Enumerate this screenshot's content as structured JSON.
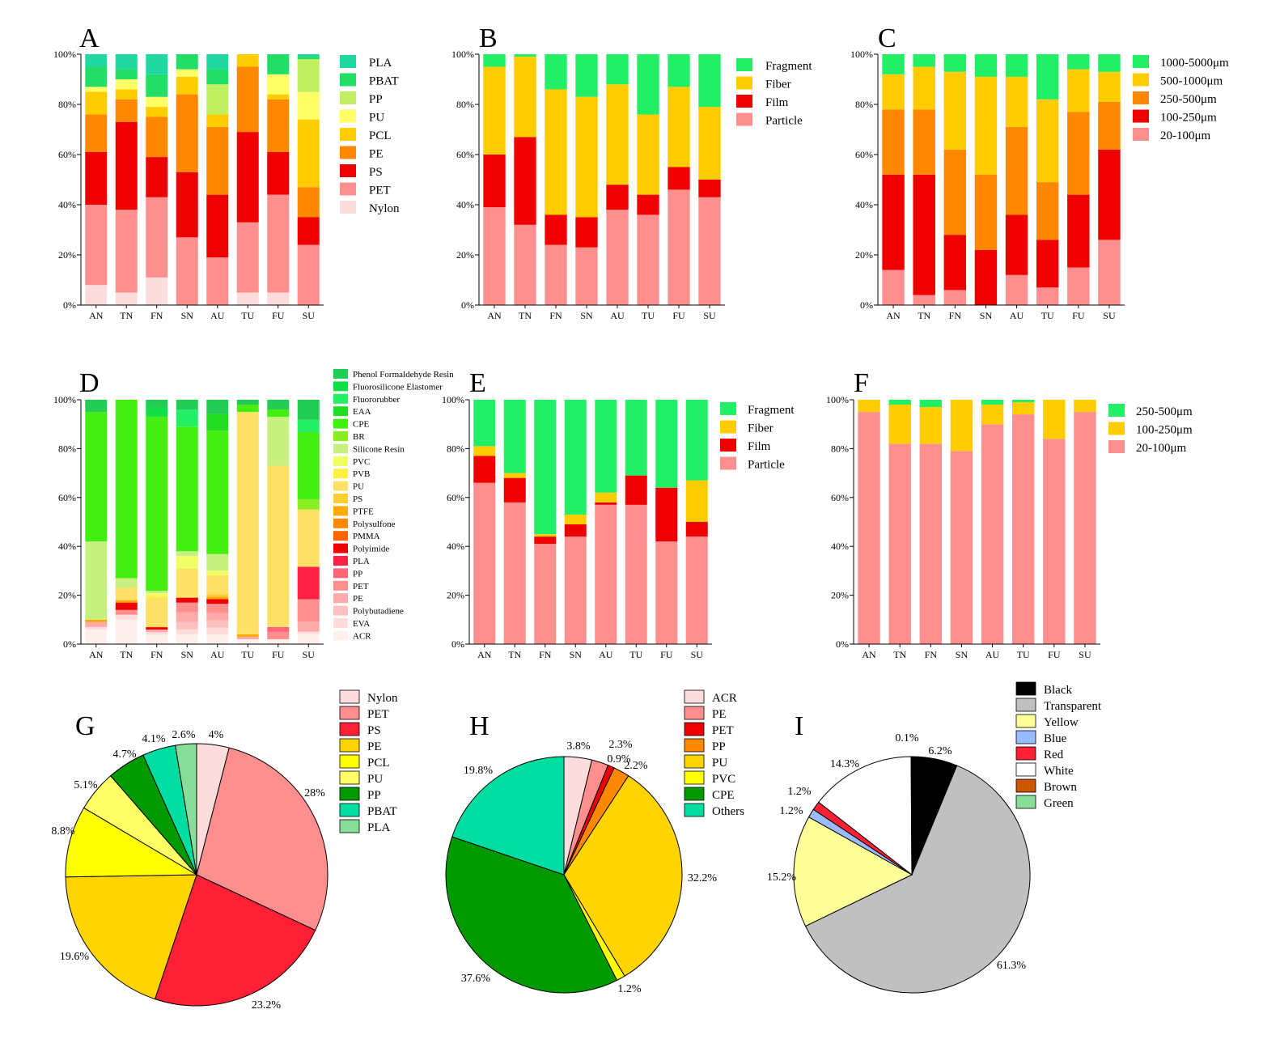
{
  "chart_data": [
    {
      "panel": "A",
      "type": "bar",
      "stacked": true,
      "categories": [
        "AN",
        "TN",
        "FN",
        "SN",
        "AU",
        "TU",
        "FU",
        "SU"
      ],
      "y_ticks": [
        "0%",
        "20%",
        "40%",
        "60%",
        "80%",
        "100%"
      ],
      "ylim": [
        0,
        100
      ],
      "legend_position": "right",
      "series": [
        {
          "name": "Nylon",
          "color": "#fcdcdc",
          "values": [
            8,
            5,
            11,
            0,
            0,
            5,
            5,
            0
          ]
        },
        {
          "name": "PET",
          "color": "#ff8f8f",
          "values": [
            32,
            33,
            32,
            27,
            19,
            28,
            39,
            24
          ]
        },
        {
          "name": "PS",
          "color": "#ee0000",
          "values": [
            21,
            35,
            16,
            26,
            25,
            36,
            17,
            11
          ]
        },
        {
          "name": "PE",
          "color": "#ff8800",
          "values": [
            15,
            9,
            16,
            31,
            27,
            26,
            21,
            12
          ]
        },
        {
          "name": "PCL",
          "color": "#ffcc00",
          "values": [
            9,
            4,
            4,
            7,
            5,
            5,
            2,
            27
          ]
        },
        {
          "name": "PU",
          "color": "#ffff66",
          "values": [
            2,
            4,
            4,
            3,
            0,
            0,
            8,
            11
          ]
        },
        {
          "name": "PP",
          "color": "#c0f060",
          "values": [
            0,
            0,
            0,
            0,
            12,
            0,
            0,
            13
          ]
        },
        {
          "name": "PBAT",
          "color": "#22dd66",
          "values": [
            8,
            4,
            9,
            6,
            6,
            0,
            8,
            1
          ]
        },
        {
          "name": "PLA",
          "color": "#20d8a0",
          "values": [
            5,
            6,
            8,
            0,
            6,
            0,
            0,
            1
          ]
        }
      ]
    },
    {
      "panel": "B",
      "type": "bar",
      "stacked": true,
      "categories": [
        "AN",
        "TN",
        "FN",
        "SN",
        "AU",
        "TU",
        "FU",
        "SU"
      ],
      "y_ticks": [
        "0%",
        "20%",
        "40%",
        "60%",
        "80%",
        "100%"
      ],
      "ylim": [
        0,
        100
      ],
      "legend_position": "right",
      "series": [
        {
          "name": "Particle",
          "color": "#ff8f8f",
          "values": [
            39,
            32,
            24,
            23,
            38,
            36,
            46,
            43
          ]
        },
        {
          "name": "Film",
          "color": "#ee0000",
          "values": [
            21,
            35,
            12,
            12,
            10,
            8,
            9,
            7
          ]
        },
        {
          "name": "Fiber",
          "color": "#ffcc00",
          "values": [
            35,
            32,
            50,
            48,
            40,
            32,
            32,
            29
          ]
        },
        {
          "name": "Fragment",
          "color": "#22ee66",
          "values": [
            5,
            1,
            14,
            17,
            12,
            24,
            13,
            21
          ]
        }
      ]
    },
    {
      "panel": "C",
      "type": "bar",
      "stacked": true,
      "categories": [
        "AN",
        "TN",
        "FN",
        "SN",
        "AU",
        "TU",
        "FU",
        "SU"
      ],
      "y_ticks": [
        "0%",
        "20%",
        "40%",
        "60%",
        "80%",
        "100%"
      ],
      "ylim": [
        0,
        100
      ],
      "legend_position": "right",
      "series": [
        {
          "name": "20-100μm",
          "color": "#ff8f8f",
          "values": [
            14,
            4,
            6,
            0,
            12,
            7,
            15,
            26
          ]
        },
        {
          "name": "100-250μm",
          "color": "#ee0000",
          "values": [
            38,
            48,
            22,
            22,
            24,
            19,
            29,
            36
          ]
        },
        {
          "name": "250-500μm",
          "color": "#ff8800",
          "values": [
            26,
            26,
            34,
            30,
            35,
            23,
            33,
            19
          ]
        },
        {
          "name": "500-1000μm",
          "color": "#ffcc00",
          "values": [
            14,
            17,
            31,
            39,
            20,
            33,
            17,
            12
          ]
        },
        {
          "name": "1000-5000μm",
          "color": "#22ee66",
          "values": [
            8,
            5,
            7,
            9,
            9,
            18,
            6,
            7
          ]
        }
      ]
    },
    {
      "panel": "D",
      "type": "bar",
      "stacked": true,
      "categories": [
        "AN",
        "TN",
        "FN",
        "SN",
        "AU",
        "TU",
        "FU",
        "SU"
      ],
      "y_ticks": [
        "0%",
        "20%",
        "40%",
        "60%",
        "80%",
        "100%"
      ],
      "ylim": [
        0,
        100
      ],
      "legend_position": "right",
      "series": [
        {
          "name": "ACR",
          "color": "#fff0ee",
          "values": [
            6,
            10,
            4,
            4,
            4,
            2,
            2,
            4
          ]
        },
        {
          "name": "EVA",
          "color": "#ffdcdc",
          "values": [
            1,
            2,
            1,
            2,
            3,
            0,
            0,
            1
          ]
        },
        {
          "name": "Polybutadiene",
          "color": "#ffc0c0",
          "values": [
            0,
            0,
            0,
            3,
            3,
            0,
            0,
            0
          ]
        },
        {
          "name": "PE",
          "color": "#ffaaaa",
          "values": [
            2,
            0,
            1,
            4,
            3,
            1,
            0,
            4
          ]
        },
        {
          "name": "PET",
          "color": "#ff8f8f",
          "values": [
            0,
            2,
            0,
            4,
            4,
            0,
            3,
            9
          ]
        },
        {
          "name": "PP",
          "color": "#ff6677",
          "values": [
            0,
            0,
            0,
            0,
            0,
            0,
            2,
            0
          ]
        },
        {
          "name": "PLA",
          "color": "#ff2244",
          "values": [
            0,
            0,
            0,
            0,
            0,
            0,
            0,
            13
          ]
        },
        {
          "name": "Polyimide",
          "color": "#ee0000",
          "values": [
            0,
            3,
            1,
            2,
            2,
            0,
            0,
            0
          ]
        },
        {
          "name": "PMMA",
          "color": "#ff6600",
          "values": [
            0,
            0,
            0,
            0,
            0,
            0,
            0,
            0
          ]
        },
        {
          "name": "Polysulfone",
          "color": "#ff8800",
          "values": [
            0,
            0,
            0,
            0,
            0,
            0,
            0,
            0
          ]
        },
        {
          "name": "PTFE",
          "color": "#ffaa00",
          "values": [
            1,
            1,
            0,
            0,
            1,
            1,
            0,
            0
          ]
        },
        {
          "name": "PS",
          "color": "#ffcc33",
          "values": [
            0,
            0,
            0,
            0,
            1,
            0,
            0,
            0
          ]
        },
        {
          "name": "PU",
          "color": "#ffe066",
          "values": [
            0,
            5,
            12,
            12,
            8,
            91,
            66,
            23
          ]
        },
        {
          "name": "PVB",
          "color": "#ffee44",
          "values": [
            0,
            0,
            1,
            0,
            0,
            0,
            0,
            0
          ]
        },
        {
          "name": "PVC",
          "color": "#f0ff66",
          "values": [
            0,
            0,
            1,
            5,
            2,
            0,
            0,
            0
          ]
        },
        {
          "name": "Silicone Resin",
          "color": "#c8f080",
          "values": [
            32,
            4,
            1,
            2,
            7,
            0,
            20,
            0
          ]
        },
        {
          "name": "BR",
          "color": "#88ee22",
          "values": [
            0,
            0,
            0,
            0,
            0,
            0,
            0,
            4
          ]
        },
        {
          "name": "CPE",
          "color": "#44ee11",
          "values": [
            53,
            73,
            72,
            51,
            52,
            3,
            3,
            27
          ]
        },
        {
          "name": "EAA",
          "color": "#22dd22",
          "values": [
            0,
            0,
            0,
            0,
            7,
            0,
            0,
            0
          ]
        },
        {
          "name": "Fluororubber",
          "color": "#22ee66",
          "values": [
            0,
            0,
            0,
            7,
            0,
            0,
            0,
            5
          ]
        },
        {
          "name": "Fluorosilicone Elastomer",
          "color": "#11dd44",
          "values": [
            0,
            0,
            4,
            0,
            0,
            0,
            0,
            0
          ]
        },
        {
          "name": "Phenol Formaldehyde Resin",
          "color": "#22cc55",
          "values": [
            5,
            0,
            3,
            4,
            6,
            2,
            4,
            8
          ]
        }
      ]
    },
    {
      "panel": "E",
      "type": "bar",
      "stacked": true,
      "categories": [
        "AN",
        "TN",
        "FN",
        "SN",
        "AU",
        "TU",
        "FU",
        "SU"
      ],
      "y_ticks": [
        "0%",
        "20%",
        "40%",
        "60%",
        "80%",
        "100%"
      ],
      "ylim": [
        0,
        100
      ],
      "legend_position": "right",
      "series": [
        {
          "name": "Particle",
          "color": "#ff8f8f",
          "values": [
            66,
            58,
            41,
            44,
            57,
            57,
            42,
            44
          ]
        },
        {
          "name": "Film",
          "color": "#ee0000",
          "values": [
            11,
            10,
            3,
            5,
            1,
            12,
            22,
            6
          ]
        },
        {
          "name": "Fiber",
          "color": "#ffcc00",
          "values": [
            4,
            2,
            1,
            4,
            4,
            0,
            0,
            17
          ]
        },
        {
          "name": "Fragment",
          "color": "#22ee66",
          "values": [
            19,
            30,
            55,
            47,
            38,
            31,
            36,
            33
          ]
        }
      ]
    },
    {
      "panel": "F",
      "type": "bar",
      "stacked": true,
      "categories": [
        "AN",
        "TN",
        "FN",
        "SN",
        "AU",
        "TU",
        "FU",
        "SU"
      ],
      "y_ticks": [
        "0%",
        "20%",
        "40%",
        "60%",
        "80%",
        "100%"
      ],
      "ylim": [
        0,
        100
      ],
      "legend_position": "right",
      "series": [
        {
          "name": "20-100μm",
          "color": "#ff8f8f",
          "values": [
            95,
            82,
            82,
            79,
            90,
            94,
            84,
            95
          ]
        },
        {
          "name": "100-250μm",
          "color": "#ffcc00",
          "values": [
            5,
            16,
            15,
            21,
            8,
            5,
            16,
            5
          ]
        },
        {
          "name": "250-500μm",
          "color": "#22ee66",
          "values": [
            0,
            2,
            3,
            0,
            2,
            1,
            0,
            0
          ]
        }
      ]
    },
    {
      "panel": "G",
      "type": "pie",
      "legend_position": "top-right",
      "slices": [
        {
          "name": "Nylon",
          "value": 4,
          "label": "4%",
          "color": "#fcdcdc"
        },
        {
          "name": "PET",
          "value": 28,
          "label": "28%",
          "color": "#ff8f8f"
        },
        {
          "name": "PS",
          "value": 23.2,
          "label": "23.2%",
          "color": "#ff2036"
        },
        {
          "name": "PE",
          "value": 19.6,
          "label": "19.6%",
          "color": "#ffd400"
        },
        {
          "name": "PCL",
          "value": 8.8,
          "label": "8.8%",
          "color": "#ffff00"
        },
        {
          "name": "PU",
          "value": 5.1,
          "label": "5.1%",
          "color": "#ffff66"
        },
        {
          "name": "PP",
          "value": 4.7,
          "label": "4.7%",
          "color": "#009900"
        },
        {
          "name": "PBAT",
          "value": 4.1,
          "label": "4.1%",
          "color": "#00dda0"
        },
        {
          "name": "PLA",
          "value": 2.6,
          "label": "2.6%",
          "color": "#88dd99"
        }
      ]
    },
    {
      "panel": "H",
      "type": "pie",
      "legend_position": "top-right",
      "slices": [
        {
          "name": "ACR",
          "value": 3.8,
          "label": "3.8%",
          "color": "#fcdcdc"
        },
        {
          "name": "PE",
          "value": 2.3,
          "label": "2.3%",
          "color": "#ff8f8f"
        },
        {
          "name": "PET",
          "value": 0.9,
          "label": "0.9%",
          "color": "#ee0000"
        },
        {
          "name": "PP",
          "value": 2.2,
          "label": "2.2%",
          "color": "#ff8800"
        },
        {
          "name": "PU",
          "value": 32.2,
          "label": "32.2%",
          "color": "#ffd400"
        },
        {
          "name": "PVC",
          "value": 1.2,
          "label": "1.2%",
          "color": "#ffff00"
        },
        {
          "name": "CPE",
          "value": 37.6,
          "label": "37.6%",
          "color": "#009900"
        },
        {
          "name": "Others",
          "value": 19.8,
          "label": "19.8%",
          "color": "#00dda0"
        }
      ]
    },
    {
      "panel": "I",
      "type": "pie",
      "legend_position": "top-right",
      "slices": [
        {
          "name": "Black",
          "value": 6.2,
          "label": "6.2%",
          "color": "#000000"
        },
        {
          "name": "Transparent",
          "value": 61.3,
          "label": "61.3%",
          "color": "#c0c0c0"
        },
        {
          "name": "Yellow",
          "value": 15.2,
          "label": "15.2%",
          "color": "#ffff99"
        },
        {
          "name": "Blue",
          "value": 1.2,
          "label": "1.2%",
          "color": "#99bbff"
        },
        {
          "name": "Red",
          "value": 1.2,
          "label": "1.2%",
          "color": "#ff2036"
        },
        {
          "name": "White",
          "value": 14.3,
          "label": "14.3%",
          "color": "#ffffff"
        },
        {
          "name": "Brown",
          "value": 0,
          "label": "",
          "color": "#cc5500"
        },
        {
          "name": "Green",
          "value": 0.1,
          "label": "0.1%",
          "color": "#88dd99"
        }
      ]
    }
  ]
}
